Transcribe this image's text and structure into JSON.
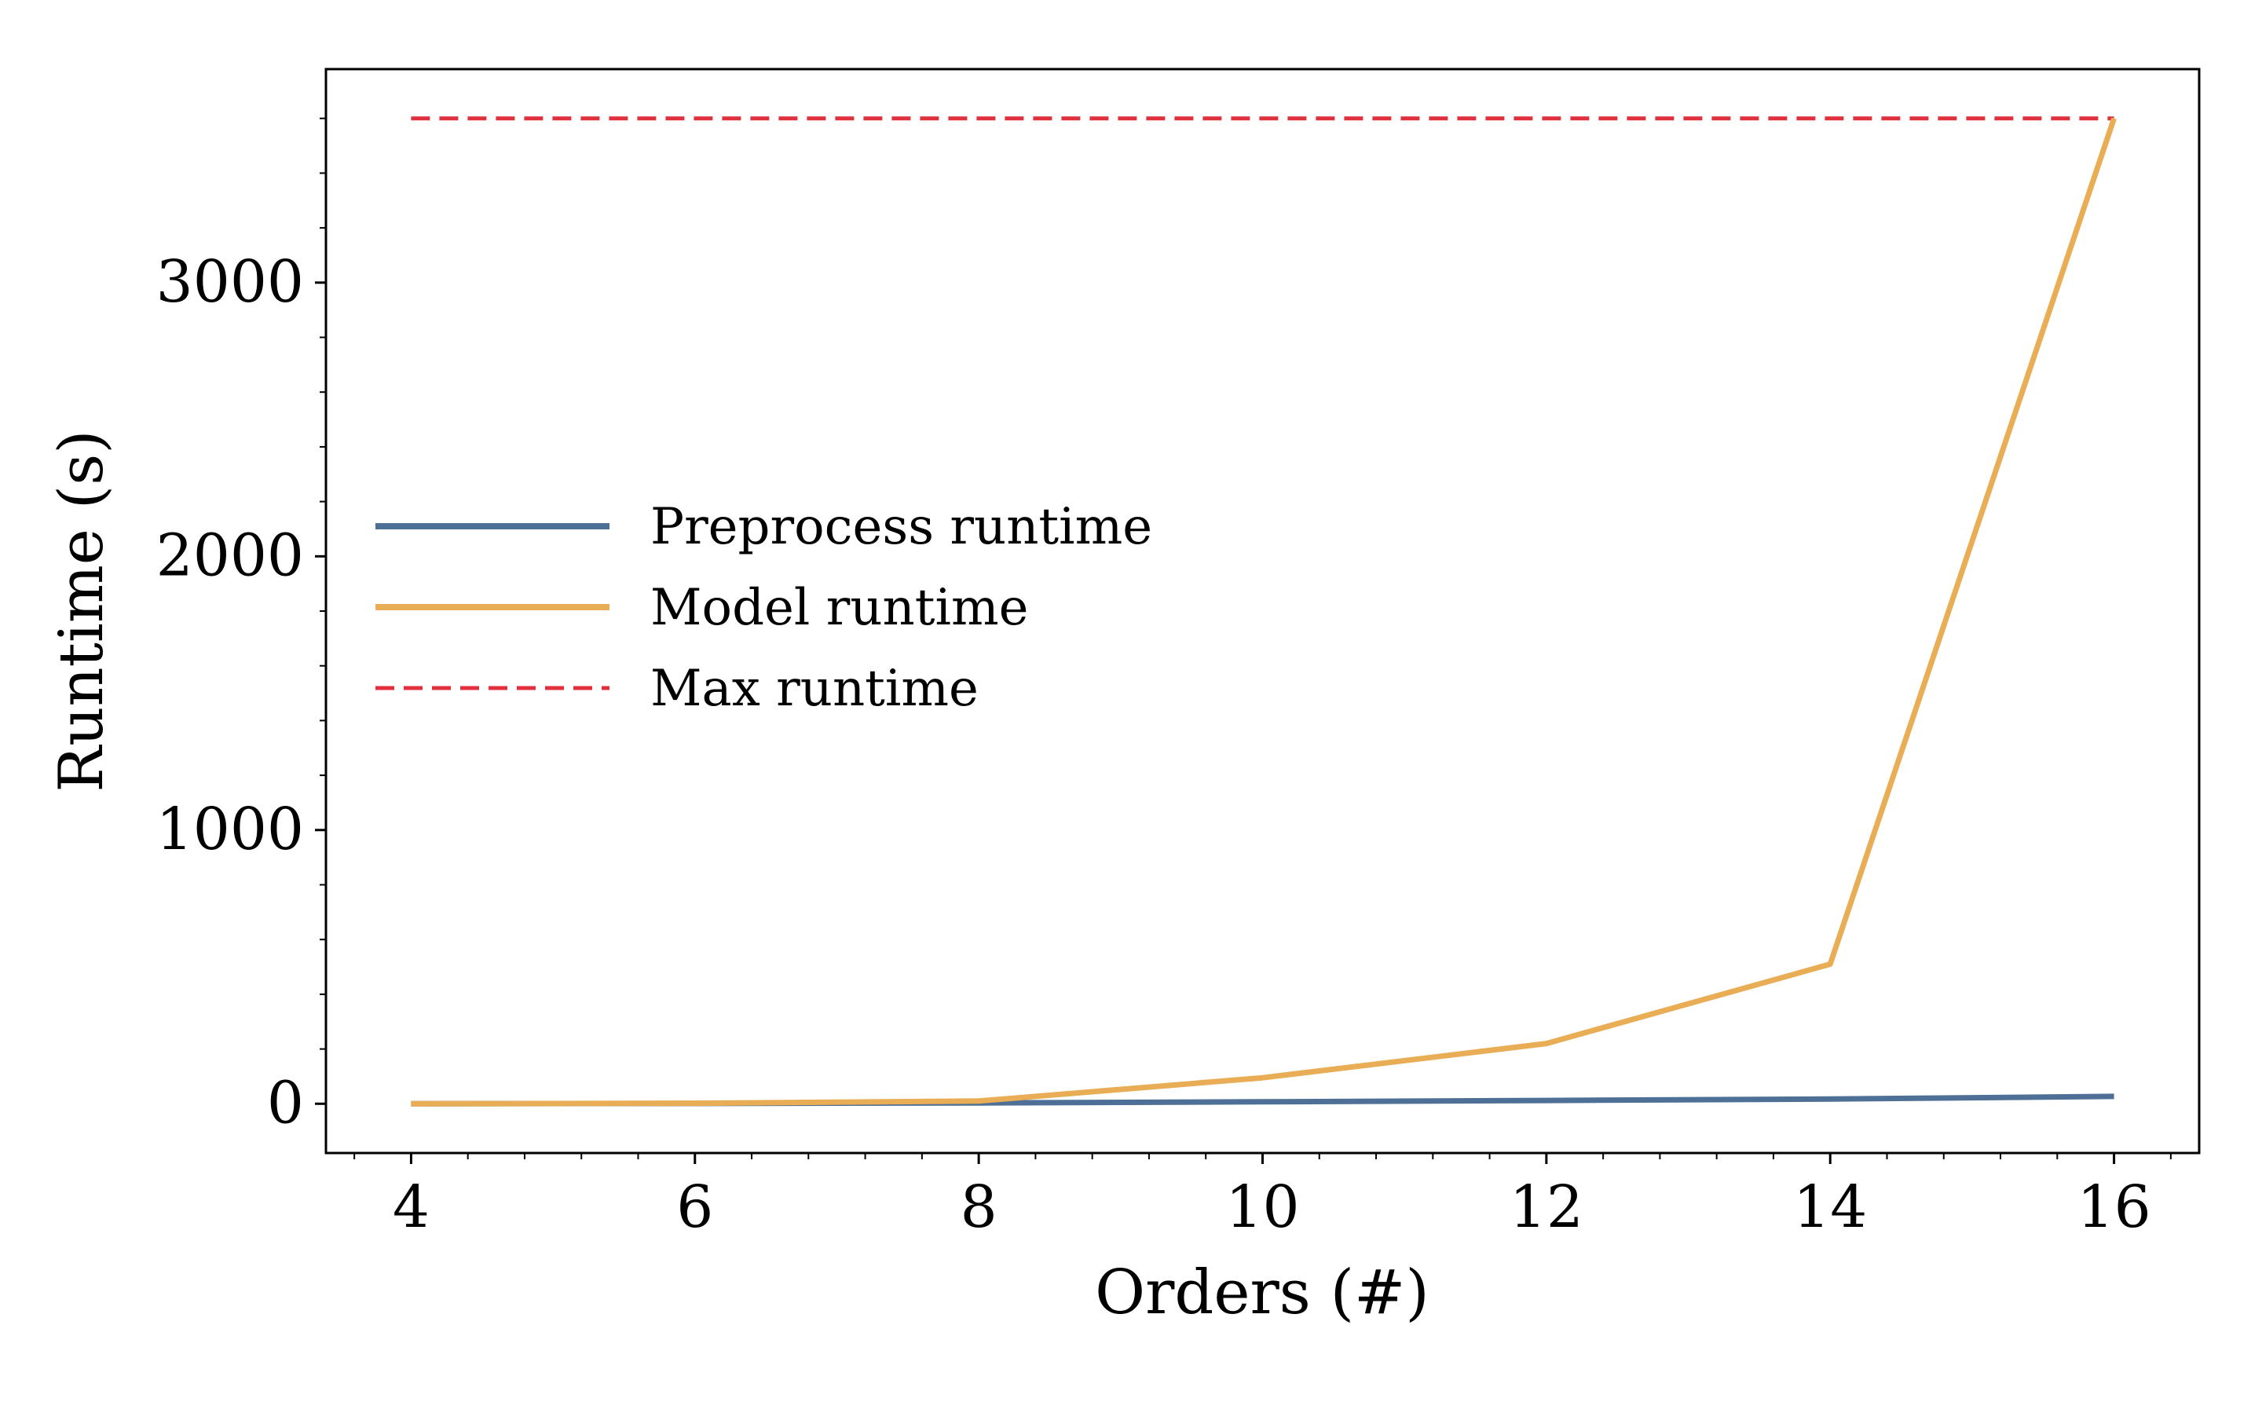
{
  "chart_data": {
    "type": "line",
    "title": "",
    "xlabel": "Orders (#)",
    "ylabel": "Runtime (s)",
    "xlim": [
      3.4,
      16.6
    ],
    "ylim": [
      -180,
      3780
    ],
    "x_ticks": [
      4,
      6,
      8,
      10,
      12,
      14,
      16
    ],
    "y_ticks": [
      0,
      1000,
      2000,
      3000
    ],
    "x_minor_step": 0.4,
    "y_minor_step": 200,
    "x": [
      4,
      6,
      8,
      10,
      12,
      14,
      16
    ],
    "series": [
      {
        "name": "Preprocess runtime",
        "color": "#4e6f96",
        "style": "solid",
        "values": [
          0,
          1,
          3,
          7,
          12,
          17,
          27
        ]
      },
      {
        "name": "Model runtime",
        "color": "#e8ad55",
        "style": "solid",
        "values": [
          0,
          2,
          10,
          95,
          220,
          510,
          3600
        ]
      },
      {
        "name": "Max runtime",
        "color": "#e0303c",
        "style": "dashed",
        "values": [
          3600,
          3600,
          3600,
          3600,
          3600,
          3600,
          3600
        ]
      }
    ],
    "legend_position": "center-left",
    "grid": false
  }
}
